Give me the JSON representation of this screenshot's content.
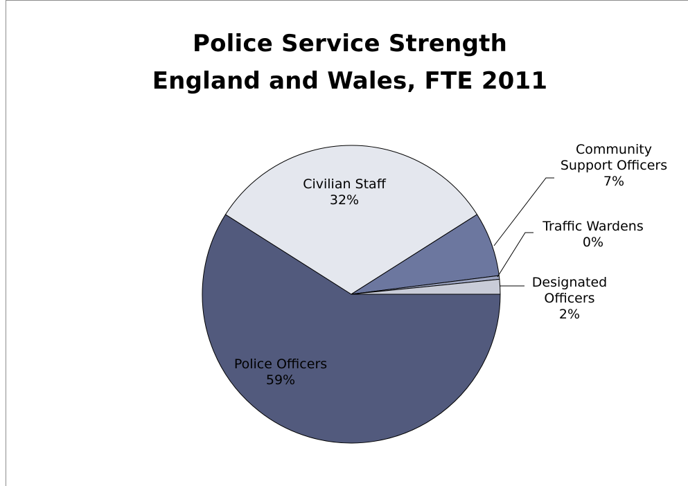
{
  "chart_data": {
    "type": "pie",
    "title": "Police Service Strength England and Wales, FTE 2011",
    "title_lines": [
      "Police Service Strength",
      "England and Wales, FTE 2011"
    ],
    "unit": "%",
    "slices": [
      {
        "label": "Police Officers",
        "label_lines": [
          "Police Officers"
        ],
        "value": 59,
        "value_label": "59%",
        "color": "#525a7d"
      },
      {
        "label": "Civilian Staff",
        "label_lines": [
          "Civilian Staff"
        ],
        "value": 32,
        "value_label": "32%",
        "color": "#e4e7ee"
      },
      {
        "label": "Community Support Officers",
        "label_lines": [
          "Community",
          "Support Officers"
        ],
        "value": 7,
        "value_label": "7%",
        "color": "#6c779f"
      },
      {
        "label": "Traffic Wardens",
        "label_lines": [
          "Traffic Wardens"
        ],
        "value": 0.4,
        "value_label": "0%",
        "color": "#9aa2bf"
      },
      {
        "label": "Designated Officers",
        "label_lines": [
          "Designated",
          "Officers"
        ],
        "value": 1.6,
        "value_label": "2%",
        "color": "#c9ccd8"
      }
    ],
    "legend": "none",
    "data_labels": "category name and percentage"
  }
}
